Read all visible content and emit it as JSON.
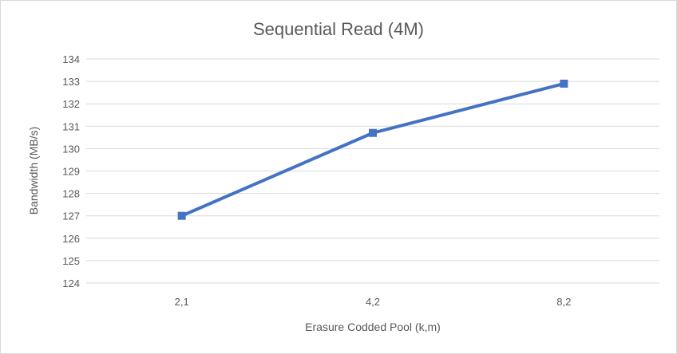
{
  "chart_data": {
    "type": "line",
    "title": "Sequential Read (4M)",
    "xlabel": "Erasure Codded Pool (k,m)",
    "ylabel": "Bandwidth (MB/s)",
    "categories": [
      "2,1",
      "4,2",
      "8,2"
    ],
    "series": [
      {
        "values": [
          127.0,
          130.7,
          132.9
        ]
      }
    ],
    "ylim": [
      124,
      134
    ],
    "yticks": [
      124,
      125,
      126,
      127,
      128,
      129,
      130,
      131,
      132,
      133,
      134
    ],
    "grid": true,
    "legend": "none",
    "marker": "square",
    "colors": {
      "series": "#4472c4",
      "grid": "#d9d9d9",
      "text": "#595959"
    }
  }
}
